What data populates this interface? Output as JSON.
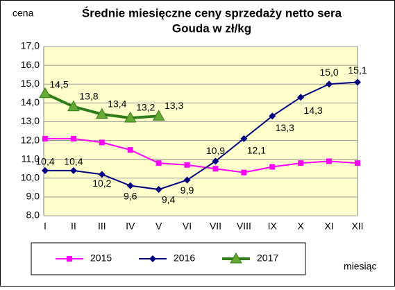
{
  "chart_data": {
    "type": "line",
    "title": [
      "Średnie miesięczne ceny sprzedaży netto sera",
      "Gouda w zł/kg"
    ],
    "y_label": "cena",
    "x_label": "miesiąc",
    "categories": [
      "I",
      "II",
      "III",
      "IV",
      "V",
      "VI",
      "VII",
      "VIII",
      "IX",
      "X",
      "XI",
      "XII"
    ],
    "ylim": [
      8,
      17
    ],
    "yticks": [
      {
        "value": 8,
        "label": "8,0"
      },
      {
        "value": 9,
        "label": "9,0"
      },
      {
        "value": 10,
        "label": "10,0"
      },
      {
        "value": 11,
        "label": "11,0"
      },
      {
        "value": 12,
        "label": "12,0"
      },
      {
        "value": 13,
        "label": "13,0"
      },
      {
        "value": 14,
        "label": "14,0"
      },
      {
        "value": 15,
        "label": "15,0"
      },
      {
        "value": 16,
        "label": "16,0"
      },
      {
        "value": 17,
        "label": "17,0"
      }
    ],
    "grid": true,
    "series": [
      {
        "name": "2015",
        "color": "#ff00ff",
        "marker": "square",
        "values": [
          12.1,
          12.1,
          11.9,
          11.5,
          10.8,
          10.7,
          10.5,
          10.3,
          10.6,
          10.8,
          10.9,
          10.8
        ]
      },
      {
        "name": "2016",
        "color": "#000080",
        "marker": "diamond",
        "values": [
          10.4,
          10.4,
          10.2,
          9.6,
          9.4,
          9.9,
          10.9,
          12.1,
          13.3,
          14.3,
          15.0,
          15.1
        ],
        "value_labels": [
          "10,4",
          "10,4",
          "10,2",
          "9,6",
          "9,4",
          "9,9",
          "10,9",
          "12,1",
          "13,3",
          "14,3",
          "15,0",
          "15,1"
        ]
      },
      {
        "name": "2017",
        "color": "#2e7d1a",
        "marker": "triangle",
        "values": [
          14.5,
          13.8,
          13.4,
          13.2,
          13.3,
          null,
          null,
          null,
          null,
          null,
          null,
          null
        ],
        "value_labels": [
          "14,5",
          "13,8",
          "13,4",
          "13,2",
          "13,3",
          null,
          null,
          null,
          null,
          null,
          null,
          null
        ]
      }
    ]
  }
}
